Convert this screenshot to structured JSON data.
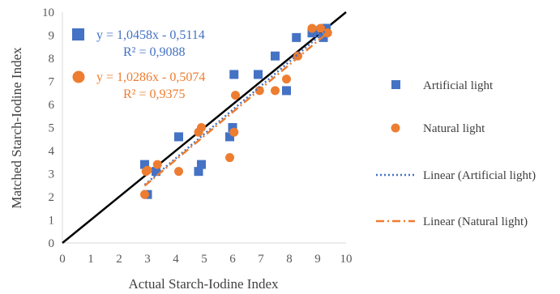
{
  "chart_data": {
    "type": "scatter",
    "xlabel": "Actual Starch-Iodine Index",
    "ylabel": "Matched Starch-Iodine Index",
    "xlim": [
      0,
      10
    ],
    "ylim": [
      0,
      10
    ],
    "xticks": [
      "0",
      "1",
      "2",
      "3",
      "4",
      "5",
      "6",
      "7",
      "8",
      "9",
      "10"
    ],
    "yticks": [
      "0",
      "1",
      "2",
      "3",
      "4",
      "5",
      "6",
      "7",
      "8",
      "9",
      "10"
    ],
    "grid": false,
    "legend_position": "right",
    "identity_line": {
      "x": [
        0,
        10
      ],
      "y": [
        0,
        10
      ],
      "color": "#000000"
    },
    "series": [
      {
        "name": "Artificial light",
        "marker": "square",
        "color": "#4472C4",
        "x": [
          2.9,
          3.0,
          3.3,
          4.1,
          4.8,
          4.9,
          5.9,
          6.0,
          6.05,
          6.9,
          7.5,
          7.9,
          8.25,
          8.8,
          8.9,
          9.2,
          9.3
        ],
        "y": [
          3.4,
          2.1,
          3.1,
          4.6,
          3.1,
          3.4,
          4.6,
          5.0,
          7.3,
          7.3,
          8.1,
          6.6,
          8.9,
          9.1,
          9.2,
          8.9,
          9.3
        ]
      },
      {
        "name": "Natural light",
        "marker": "circle",
        "color": "#ED7D31",
        "x": [
          2.9,
          2.95,
          3.0,
          3.35,
          4.1,
          4.8,
          4.9,
          5.9,
          6.05,
          6.1,
          6.95,
          7.5,
          7.9,
          8.3,
          8.8,
          9.1,
          9.35
        ],
        "y": [
          2.1,
          3.1,
          3.15,
          3.4,
          3.1,
          4.8,
          5.0,
          3.7,
          4.8,
          6.4,
          6.6,
          6.6,
          7.1,
          8.1,
          9.3,
          9.3,
          9.1
        ]
      }
    ],
    "trendlines": [
      {
        "name": "Linear (Artificial light)",
        "style": "dotted",
        "color": "#4472C4",
        "slope": 1.0458,
        "intercept": -0.5114,
        "x_range": [
          2.9,
          9.3
        ],
        "equation": "y = 1,0458x - 0,5114",
        "r2": "R² = 0,9088"
      },
      {
        "name": "Linear (Natural light)",
        "style": "dashdot",
        "color": "#ED7D31",
        "slope": 1.0286,
        "intercept": -0.5074,
        "x_range": [
          2.9,
          9.35
        ],
        "equation": "y = 1,0286x - 0,5074",
        "r2": "R² = 0,9375"
      }
    ]
  }
}
